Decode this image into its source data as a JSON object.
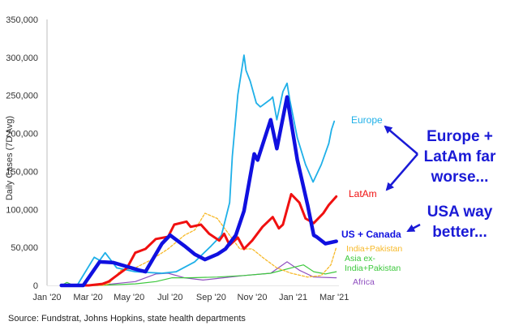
{
  "chart_data": {
    "type": "line",
    "title": "",
    "xlabel": "",
    "ylabel": "Daily Cases (7D Avg)",
    "ylim": [
      0,
      350000
    ],
    "yticks": [
      "0",
      "50,000",
      "100,000",
      "150,000",
      "200,000",
      "250,000",
      "300,000",
      "350,000"
    ],
    "ytick_values": [
      0,
      50000,
      100000,
      150000,
      200000,
      250000,
      300000,
      350000
    ],
    "xticks": [
      "Jan '20",
      "Mar '20",
      "May '20",
      "Jul '20",
      "Sep '20",
      "Nov '20",
      "Jan '21",
      "Mar '21"
    ],
    "xtick_dates": [
      "2020-01-01",
      "2020-03-01",
      "2020-05-01",
      "2020-07-01",
      "2020-09-01",
      "2020-11-01",
      "2021-01-01",
      "2021-03-01"
    ],
    "grid": false,
    "series": [
      {
        "name": "Europe",
        "color": "#1fb0e8",
        "width": 1.8,
        "dash": false,
        "points": [
          [
            "2020-01-22",
            0
          ],
          [
            "2020-02-15",
            0
          ],
          [
            "2020-03-10",
            37000
          ],
          [
            "2020-03-18",
            33000
          ],
          [
            "2020-03-26",
            43000
          ],
          [
            "2020-04-13",
            23000
          ],
          [
            "2020-05-10",
            18000
          ],
          [
            "2020-06-19",
            16000
          ],
          [
            "2020-07-10",
            18000
          ],
          [
            "2020-08-07",
            31000
          ],
          [
            "2020-09-01",
            52000
          ],
          [
            "2020-09-16",
            66000
          ],
          [
            "2020-09-28",
            109000
          ],
          [
            "2020-10-02",
            170000
          ],
          [
            "2020-10-10",
            251000
          ],
          [
            "2020-10-19",
            303000
          ],
          [
            "2020-10-22",
            283000
          ],
          [
            "2020-10-28",
            269000
          ],
          [
            "2020-11-07",
            240000
          ],
          [
            "2020-11-13",
            235000
          ],
          [
            "2020-11-28",
            245000
          ],
          [
            "2020-12-01",
            248000
          ],
          [
            "2020-12-07",
            218000
          ],
          [
            "2020-12-16",
            255000
          ],
          [
            "2020-12-22",
            266000
          ],
          [
            "2020-12-26",
            244000
          ],
          [
            "2021-01-07",
            194000
          ],
          [
            "2021-01-19",
            159000
          ],
          [
            "2021-01-30",
            136000
          ],
          [
            "2021-02-12",
            159000
          ],
          [
            "2021-02-23",
            187000
          ],
          [
            "2021-02-27",
            205000
          ],
          [
            "2021-03-01",
            216000
          ]
        ]
      },
      {
        "name": "LatAm",
        "color": "#f01010",
        "width": 3,
        "dash": false,
        "points": [
          [
            "2020-01-22",
            0
          ],
          [
            "2020-03-02",
            0
          ],
          [
            "2020-03-22",
            2000
          ],
          [
            "2020-04-01",
            5000
          ],
          [
            "2020-04-13",
            13000
          ],
          [
            "2020-04-28",
            23000
          ],
          [
            "2020-05-10",
            43000
          ],
          [
            "2020-05-25",
            48000
          ],
          [
            "2020-06-10",
            61000
          ],
          [
            "2020-06-28",
            64000
          ],
          [
            "2020-07-07",
            80000
          ],
          [
            "2020-07-25",
            84000
          ],
          [
            "2020-08-01",
            77000
          ],
          [
            "2020-08-16",
            80000
          ],
          [
            "2020-08-28",
            68000
          ],
          [
            "2020-09-13",
            59000
          ],
          [
            "2020-09-20",
            68000
          ],
          [
            "2020-09-28",
            53000
          ],
          [
            "2020-10-10",
            63000
          ],
          [
            "2020-10-19",
            48000
          ],
          [
            "2020-11-01",
            59000
          ],
          [
            "2020-11-16",
            77000
          ],
          [
            "2020-12-01",
            90000
          ],
          [
            "2020-12-10",
            75000
          ],
          [
            "2020-12-16",
            80000
          ],
          [
            "2020-12-28",
            120000
          ],
          [
            "2021-01-10",
            109000
          ],
          [
            "2021-01-19",
            88000
          ],
          [
            "2021-02-01",
            82000
          ],
          [
            "2021-02-15",
            95000
          ],
          [
            "2021-02-23",
            106000
          ],
          [
            "2021-03-04",
            117000
          ]
        ]
      },
      {
        "name": "US + Canada",
        "color": "#1010e0",
        "width": 4.5,
        "dash": false,
        "points": [
          [
            "2020-01-22",
            0
          ],
          [
            "2020-02-24",
            0
          ],
          [
            "2020-03-18",
            31000
          ],
          [
            "2020-04-08",
            30000
          ],
          [
            "2020-05-16",
            20000
          ],
          [
            "2020-05-25",
            18000
          ],
          [
            "2020-06-19",
            55000
          ],
          [
            "2020-07-01",
            66000
          ],
          [
            "2020-07-22",
            52000
          ],
          [
            "2020-08-07",
            41000
          ],
          [
            "2020-08-22",
            34000
          ],
          [
            "2020-09-10",
            41000
          ],
          [
            "2020-09-22",
            48000
          ],
          [
            "2020-10-07",
            66000
          ],
          [
            "2020-10-19",
            98000
          ],
          [
            "2020-11-04",
            173000
          ],
          [
            "2020-11-09",
            165000
          ],
          [
            "2020-11-28",
            218000
          ],
          [
            "2020-12-07",
            180000
          ],
          [
            "2020-12-22",
            248000
          ],
          [
            "2021-01-07",
            165000
          ],
          [
            "2021-01-22",
            106000
          ],
          [
            "2021-02-01",
            66000
          ],
          [
            "2021-02-05",
            64000
          ],
          [
            "2021-02-18",
            55000
          ],
          [
            "2021-03-04",
            58000
          ]
        ]
      },
      {
        "name": "India+Pakistan",
        "color": "#f7b928",
        "width": 1.3,
        "dash": true,
        "points": [
          [
            "2020-01-22",
            0
          ],
          [
            "2020-03-22",
            0
          ],
          [
            "2020-04-01",
            2000
          ],
          [
            "2020-04-19",
            20000
          ],
          [
            "2020-05-10",
            23000
          ],
          [
            "2020-06-04",
            34000
          ],
          [
            "2020-06-28",
            48000
          ],
          [
            "2020-07-22",
            66000
          ],
          [
            "2020-08-07",
            73000
          ],
          [
            "2020-08-22",
            95000
          ],
          [
            "2020-09-10",
            88000
          ],
          [
            "2020-09-28",
            66000
          ],
          [
            "2020-10-13",
            48000
          ],
          [
            "2020-11-01",
            48000
          ],
          [
            "2020-11-16",
            37000
          ],
          [
            "2020-12-07",
            23000
          ],
          [
            "2020-12-28",
            16000
          ],
          [
            "2021-01-22",
            11000
          ],
          [
            "2021-02-12",
            13000
          ],
          [
            "2021-02-26",
            27000
          ],
          [
            "2021-03-04",
            50000
          ]
        ]
      },
      {
        "name": "Asia ex-India+Pakistan",
        "color": "#3cc83c",
        "width": 1.2,
        "dash": false,
        "points": [
          [
            "2020-01-22",
            0
          ],
          [
            "2020-01-30",
            4000
          ],
          [
            "2020-02-10",
            0
          ],
          [
            "2020-03-15",
            0
          ],
          [
            "2020-05-10",
            2000
          ],
          [
            "2020-06-10",
            5000
          ],
          [
            "2020-07-04",
            10000
          ],
          [
            "2020-07-28",
            10000
          ],
          [
            "2020-09-10",
            11000
          ],
          [
            "2020-10-19",
            13000
          ],
          [
            "2020-11-28",
            16000
          ],
          [
            "2020-12-28",
            23000
          ],
          [
            "2021-01-16",
            27000
          ],
          [
            "2021-02-01",
            18000
          ],
          [
            "2021-02-18",
            15000
          ],
          [
            "2021-03-04",
            18000
          ]
        ]
      },
      {
        "name": "Africa",
        "color": "#9050c0",
        "width": 1.2,
        "dash": false,
        "points": [
          [
            "2020-01-22",
            0
          ],
          [
            "2020-03-15",
            0
          ],
          [
            "2020-05-10",
            5000
          ],
          [
            "2020-06-10",
            15000
          ],
          [
            "2020-06-28",
            16000
          ],
          [
            "2020-07-22",
            10000
          ],
          [
            "2020-08-19",
            7000
          ],
          [
            "2020-10-19",
            13000
          ],
          [
            "2020-11-28",
            16000
          ],
          [
            "2020-12-22",
            31000
          ],
          [
            "2021-01-10",
            20000
          ],
          [
            "2021-02-01",
            11000
          ],
          [
            "2021-03-04",
            10000
          ]
        ]
      }
    ],
    "series_labels": {
      "europe": "Europe",
      "latam": "LatAm",
      "us_canada": "US + Canada",
      "india_pakistan": "India+Pakistan",
      "asia_line1": "Asia ex-",
      "asia_line2": "India+Pakistan",
      "africa": "Africa"
    },
    "annotations": {
      "europe_latam": [
        "Europe +",
        "LatAm far",
        "worse..."
      ],
      "usa": [
        "USA way",
        "better..."
      ],
      "arrow_color": "#1a1ad6"
    },
    "source": "Source: Fundstrat,  Johns Hopkins, state health departments"
  }
}
